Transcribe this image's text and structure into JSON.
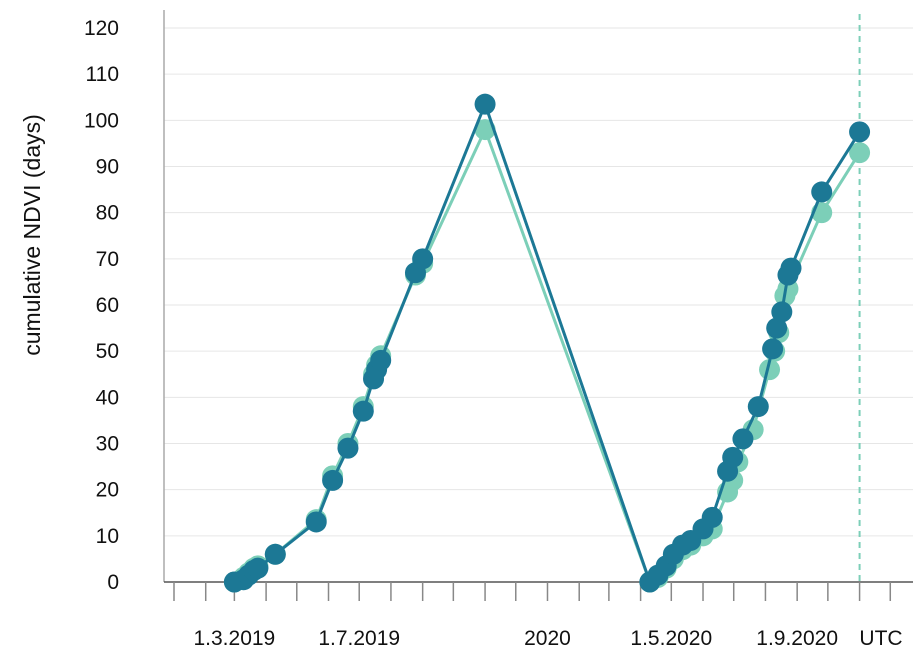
{
  "chart_data": {
    "type": "line",
    "title": "",
    "xlabel": "",
    "ylabel": "cumulative NDVI (days)",
    "ylim": [
      0,
      120
    ],
    "yticks": [
      0,
      10,
      20,
      30,
      40,
      50,
      60,
      70,
      80,
      90,
      100,
      110,
      120
    ],
    "xlim": [
      "2019-01-01",
      "2021-01-01"
    ],
    "xtick_labels": [
      {
        "date": "2019-03-01",
        "label": "1.3.2019"
      },
      {
        "date": "2019-07-01",
        "label": "1.7.2019"
      },
      {
        "date": "2020-01-01",
        "label": "2020"
      },
      {
        "date": "2020-05-01",
        "label": "1.5.2020"
      },
      {
        "date": "2020-09-01",
        "label": "1.9.2020"
      }
    ],
    "corner_label": "UTC",
    "grid": true,
    "marker_line_date": "2020-11-01",
    "series": [
      {
        "color": "#7ccfb8",
        "points": [
          {
            "x": "2019-03-01",
            "y": 0
          },
          {
            "x": "2019-03-10",
            "y": 1
          },
          {
            "x": "2019-03-15",
            "y": 2
          },
          {
            "x": "2019-03-20",
            "y": 3
          },
          {
            "x": "2019-03-24",
            "y": 3.5
          },
          {
            "x": "2019-04-10",
            "y": 6
          },
          {
            "x": "2019-05-20",
            "y": 13.5
          },
          {
            "x": "2019-06-05",
            "y": 23
          },
          {
            "x": "2019-06-20",
            "y": 30
          },
          {
            "x": "2019-07-05",
            "y": 38
          },
          {
            "x": "2019-07-15",
            "y": 45
          },
          {
            "x": "2019-07-18",
            "y": 47
          },
          {
            "x": "2019-07-22",
            "y": 49
          },
          {
            "x": "2019-08-25",
            "y": 66.5
          },
          {
            "x": "2019-09-01",
            "y": 69
          },
          {
            "x": "2019-11-01",
            "y": 98
          },
          {
            "x": "2020-04-10",
            "y": 0
          },
          {
            "x": "2020-04-18",
            "y": 1
          },
          {
            "x": "2020-04-26",
            "y": 3
          },
          {
            "x": "2020-05-03",
            "y": 5
          },
          {
            "x": "2020-05-12",
            "y": 7
          },
          {
            "x": "2020-05-20",
            "y": 8
          },
          {
            "x": "2020-06-01",
            "y": 10
          },
          {
            "x": "2020-06-10",
            "y": 11.5
          },
          {
            "x": "2020-06-25",
            "y": 19.5
          },
          {
            "x": "2020-06-30",
            "y": 22
          },
          {
            "x": "2020-07-05",
            "y": 26
          },
          {
            "x": "2020-07-20",
            "y": 33
          },
          {
            "x": "2020-08-05",
            "y": 46
          },
          {
            "x": "2020-08-10",
            "y": 50
          },
          {
            "x": "2020-08-14",
            "y": 54
          },
          {
            "x": "2020-08-20",
            "y": 62
          },
          {
            "x": "2020-08-23",
            "y": 63.5
          },
          {
            "x": "2020-09-25",
            "y": 80
          },
          {
            "x": "2020-11-01",
            "y": 93
          }
        ]
      },
      {
        "color": "#1c7895",
        "points": [
          {
            "x": "2019-03-01",
            "y": 0
          },
          {
            "x": "2019-03-10",
            "y": 0.5
          },
          {
            "x": "2019-03-15",
            "y": 1.5
          },
          {
            "x": "2019-03-20",
            "y": 2.5
          },
          {
            "x": "2019-03-24",
            "y": 3
          },
          {
            "x": "2019-04-10",
            "y": 6
          },
          {
            "x": "2019-05-20",
            "y": 13
          },
          {
            "x": "2019-06-05",
            "y": 22
          },
          {
            "x": "2019-06-20",
            "y": 29
          },
          {
            "x": "2019-07-05",
            "y": 37
          },
          {
            "x": "2019-07-15",
            "y": 44
          },
          {
            "x": "2019-07-18",
            "y": 46
          },
          {
            "x": "2019-07-22",
            "y": 48
          },
          {
            "x": "2019-08-25",
            "y": 67
          },
          {
            "x": "2019-09-01",
            "y": 70
          },
          {
            "x": "2019-11-01",
            "y": 103.5
          },
          {
            "x": "2020-04-10",
            "y": 0
          },
          {
            "x": "2020-04-18",
            "y": 1.5
          },
          {
            "x": "2020-04-26",
            "y": 3.5
          },
          {
            "x": "2020-05-03",
            "y": 6
          },
          {
            "x": "2020-05-12",
            "y": 8
          },
          {
            "x": "2020-05-20",
            "y": 9
          },
          {
            "x": "2020-06-01",
            "y": 11.5
          },
          {
            "x": "2020-06-10",
            "y": 14
          },
          {
            "x": "2020-06-25",
            "y": 24
          },
          {
            "x": "2020-06-30",
            "y": 27
          },
          {
            "x": "2020-07-10",
            "y": 31
          },
          {
            "x": "2020-07-25",
            "y": 38
          },
          {
            "x": "2020-08-08",
            "y": 50.5
          },
          {
            "x": "2020-08-12",
            "y": 55
          },
          {
            "x": "2020-08-17",
            "y": 58.5
          },
          {
            "x": "2020-08-23",
            "y": 66.5
          },
          {
            "x": "2020-08-26",
            "y": 68
          },
          {
            "x": "2020-09-25",
            "y": 84.5
          },
          {
            "x": "2020-11-01",
            "y": 97.5
          }
        ]
      }
    ]
  }
}
